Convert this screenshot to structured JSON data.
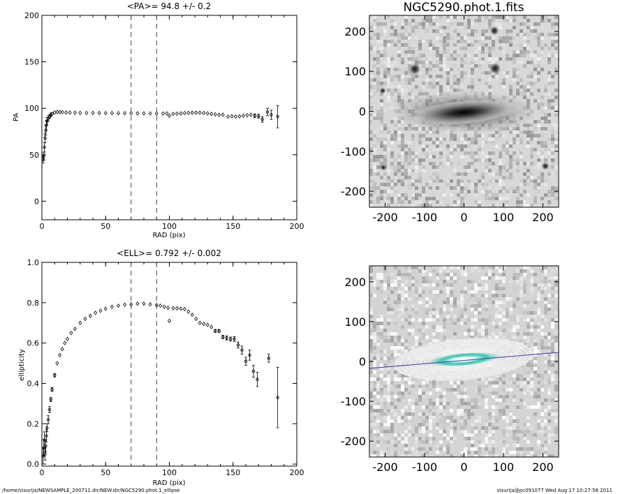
{
  "footer": {
    "path": "/home/visurija/NEWSAMPLE_200711.dir/NEW.dir/NGC5290.phot.1_ellipse",
    "stamp": "visurija@pc091077  Wed Aug 17 10:27:58 2011"
  },
  "chart_data": [
    {
      "type": "scatter",
      "title": "<PA>=  94.8 +/-   0.2",
      "xlabel": "RAD (pix)",
      "ylabel": "PA",
      "xlim": [
        0,
        200
      ],
      "ylim": [
        -20,
        200
      ],
      "xticks": [
        0,
        50,
        100,
        150,
        200
      ],
      "yticks": [
        0,
        50,
        100,
        150,
        200
      ],
      "vlines": [
        70,
        90
      ],
      "vline_style": "dashed",
      "marker": "diamond-open",
      "points": [
        {
          "x": 1,
          "y": 45,
          "e": 4
        },
        {
          "x": 1.5,
          "y": 48,
          "e": 4
        },
        {
          "x": 2,
          "y": 58,
          "e": 5
        },
        {
          "x": 2.5,
          "y": 68,
          "e": 5
        },
        {
          "x": 3,
          "y": 76,
          "e": 5
        },
        {
          "x": 3.5,
          "y": 82,
          "e": 5
        },
        {
          "x": 4,
          "y": 86,
          "e": 4
        },
        {
          "x": 5,
          "y": 89,
          "e": 3
        },
        {
          "x": 6,
          "y": 91,
          "e": 2
        },
        {
          "x": 7,
          "y": 93,
          "e": 2
        },
        {
          "x": 8,
          "y": 94,
          "e": 1
        },
        {
          "x": 10,
          "y": 95.5,
          "e": 1
        },
        {
          "x": 12,
          "y": 96,
          "e": 1
        },
        {
          "x": 14,
          "y": 96,
          "e": 0.5
        },
        {
          "x": 16,
          "y": 95.8,
          "e": 0.5
        },
        {
          "x": 19,
          "y": 95.5,
          "e": 0.5
        },
        {
          "x": 22,
          "y": 95.3,
          "e": 0.5
        },
        {
          "x": 26,
          "y": 95.2,
          "e": 0.5
        },
        {
          "x": 30,
          "y": 95.1,
          "e": 0.5
        },
        {
          "x": 35,
          "y": 95,
          "e": 0.5
        },
        {
          "x": 40,
          "y": 95,
          "e": 0.5
        },
        {
          "x": 45,
          "y": 94.9,
          "e": 0.5
        },
        {
          "x": 50,
          "y": 94.8,
          "e": 0.5
        },
        {
          "x": 55,
          "y": 94.8,
          "e": 0.5
        },
        {
          "x": 60,
          "y": 94.7,
          "e": 0.5
        },
        {
          "x": 65,
          "y": 94.7,
          "e": 0.5
        },
        {
          "x": 70,
          "y": 94.6,
          "e": 0.5
        },
        {
          "x": 75,
          "y": 94.6,
          "e": 0.5
        },
        {
          "x": 80,
          "y": 94.5,
          "e": 0.5
        },
        {
          "x": 85,
          "y": 94.4,
          "e": 0.5
        },
        {
          "x": 90,
          "y": 94.3,
          "e": 0.5
        },
        {
          "x": 95,
          "y": 94.3,
          "e": 0.5
        },
        {
          "x": 98,
          "y": 94.5,
          "e": 0.5
        },
        {
          "x": 100,
          "y": 92,
          "e": 0.7
        },
        {
          "x": 103,
          "y": 94,
          "e": 0.5
        },
        {
          "x": 106,
          "y": 94.2,
          "e": 0.5
        },
        {
          "x": 109,
          "y": 94.5,
          "e": 0.5
        },
        {
          "x": 112,
          "y": 94.8,
          "e": 0.5
        },
        {
          "x": 115,
          "y": 95,
          "e": 0.5
        },
        {
          "x": 118,
          "y": 95.2,
          "e": 0.5
        },
        {
          "x": 121,
          "y": 95.3,
          "e": 0.5
        },
        {
          "x": 124,
          "y": 95.2,
          "e": 0.5
        },
        {
          "x": 127,
          "y": 95,
          "e": 0.5
        },
        {
          "x": 130,
          "y": 94.5,
          "e": 0.5
        },
        {
          "x": 133,
          "y": 94,
          "e": 0.5
        },
        {
          "x": 136,
          "y": 93.5,
          "e": 0.5
        },
        {
          "x": 139,
          "y": 93,
          "e": 0.5
        },
        {
          "x": 142,
          "y": 93.2,
          "e": 0.5
        },
        {
          "x": 146,
          "y": 91,
          "e": 1
        },
        {
          "x": 149,
          "y": 91.5,
          "e": 1
        },
        {
          "x": 152,
          "y": 91,
          "e": 1
        },
        {
          "x": 155,
          "y": 91.3,
          "e": 1
        },
        {
          "x": 158,
          "y": 92,
          "e": 1
        },
        {
          "x": 161,
          "y": 92.5,
          "e": 1.5
        },
        {
          "x": 164,
          "y": 93,
          "e": 1.5
        },
        {
          "x": 167,
          "y": 92,
          "e": 2
        },
        {
          "x": 170,
          "y": 91.5,
          "e": 2
        },
        {
          "x": 173,
          "y": 88,
          "e": 3
        },
        {
          "x": 177,
          "y": 96,
          "e": 4
        },
        {
          "x": 180,
          "y": 93,
          "e": 5
        },
        {
          "x": 185,
          "y": 91,
          "e": 12
        }
      ]
    },
    {
      "type": "image",
      "title": "NGC5290.phot.1.fits",
      "xlim": [
        -240,
        240
      ],
      "ylim": [
        -240,
        240
      ],
      "xticks": [
        -200,
        -100,
        0,
        100,
        200
      ],
      "yticks": [
        -200,
        -100,
        0,
        100,
        200
      ]
    },
    {
      "type": "scatter",
      "title": "<ELL>= 0.792 +/-  0.002",
      "xlabel": "RAD (pix)",
      "ylabel": "ellipticity",
      "xlim": [
        0,
        200
      ],
      "ylim": [
        -0.01,
        1.0
      ],
      "xticks": [
        0,
        50,
        100,
        150,
        200
      ],
      "yticks": [
        0.0,
        0.2,
        0.4,
        0.6,
        0.8,
        1.0
      ],
      "ytick_labels": [
        "0.0",
        "0.2",
        "0.4",
        "0.6",
        "0.8",
        "1.0"
      ],
      "vlines": [
        70,
        90
      ],
      "vline_style": "dashed",
      "marker": "diamond-open",
      "points": [
        {
          "x": 1,
          "y": 0.04,
          "e": 0.04
        },
        {
          "x": 1.5,
          "y": 0.08,
          "e": 0.04
        },
        {
          "x": 2,
          "y": 0.12,
          "e": 0.04
        },
        {
          "x": 2.5,
          "y": 0.05,
          "e": 0.03
        },
        {
          "x": 3,
          "y": 0.09,
          "e": 0.03
        },
        {
          "x": 3.5,
          "y": 0.14,
          "e": 0.03
        },
        {
          "x": 4,
          "y": 0.18,
          "e": 0.02
        },
        {
          "x": 5,
          "y": 0.22,
          "e": 0.02
        },
        {
          "x": 6,
          "y": 0.27,
          "e": 0.015
        },
        {
          "x": 7,
          "y": 0.32,
          "e": 0.01
        },
        {
          "x": 8,
          "y": 0.37,
          "e": 0.01
        },
        {
          "x": 10,
          "y": 0.44,
          "e": 0.008
        },
        {
          "x": 12,
          "y": 0.5,
          "e": 0.006
        },
        {
          "x": 14,
          "y": 0.54,
          "e": 0.005
        },
        {
          "x": 16,
          "y": 0.57,
          "e": 0.005
        },
        {
          "x": 18,
          "y": 0.6,
          "e": 0.005
        },
        {
          "x": 20,
          "y": 0.62,
          "e": 0.004
        },
        {
          "x": 23,
          "y": 0.65,
          "e": 0.004
        },
        {
          "x": 26,
          "y": 0.67,
          "e": 0.004
        },
        {
          "x": 30,
          "y": 0.7,
          "e": 0.003
        },
        {
          "x": 34,
          "y": 0.72,
          "e": 0.003
        },
        {
          "x": 38,
          "y": 0.735,
          "e": 0.003
        },
        {
          "x": 42,
          "y": 0.75,
          "e": 0.003
        },
        {
          "x": 46,
          "y": 0.76,
          "e": 0.003
        },
        {
          "x": 50,
          "y": 0.77,
          "e": 0.003
        },
        {
          "x": 55,
          "y": 0.78,
          "e": 0.003
        },
        {
          "x": 60,
          "y": 0.785,
          "e": 0.003
        },
        {
          "x": 65,
          "y": 0.79,
          "e": 0.003
        },
        {
          "x": 70,
          "y": 0.792,
          "e": 0.003
        },
        {
          "x": 75,
          "y": 0.795,
          "e": 0.003
        },
        {
          "x": 80,
          "y": 0.795,
          "e": 0.003
        },
        {
          "x": 85,
          "y": 0.792,
          "e": 0.003
        },
        {
          "x": 90,
          "y": 0.788,
          "e": 0.003
        },
        {
          "x": 93,
          "y": 0.785,
          "e": 0.003
        },
        {
          "x": 96,
          "y": 0.78,
          "e": 0.003
        },
        {
          "x": 99,
          "y": 0.775,
          "e": 0.004
        },
        {
          "x": 100,
          "y": 0.71,
          "e": 0.005
        },
        {
          "x": 103,
          "y": 0.772,
          "e": 0.004
        },
        {
          "x": 106,
          "y": 0.772,
          "e": 0.004
        },
        {
          "x": 109,
          "y": 0.77,
          "e": 0.004
        },
        {
          "x": 112,
          "y": 0.768,
          "e": 0.004
        },
        {
          "x": 115,
          "y": 0.755,
          "e": 0.004
        },
        {
          "x": 118,
          "y": 0.74,
          "e": 0.004
        },
        {
          "x": 121,
          "y": 0.72,
          "e": 0.005
        },
        {
          "x": 124,
          "y": 0.7,
          "e": 0.005
        },
        {
          "x": 127,
          "y": 0.695,
          "e": 0.005
        },
        {
          "x": 130,
          "y": 0.69,
          "e": 0.006
        },
        {
          "x": 133,
          "y": 0.68,
          "e": 0.006
        },
        {
          "x": 136,
          "y": 0.66,
          "e": 0.007
        },
        {
          "x": 139,
          "y": 0.66,
          "e": 0.007
        },
        {
          "x": 142,
          "y": 0.63,
          "e": 0.008
        },
        {
          "x": 145,
          "y": 0.625,
          "e": 0.01
        },
        {
          "x": 148,
          "y": 0.62,
          "e": 0.01
        },
        {
          "x": 151,
          "y": 0.62,
          "e": 0.012
        },
        {
          "x": 154,
          "y": 0.59,
          "e": 0.015
        },
        {
          "x": 157,
          "y": 0.565,
          "e": 0.02
        },
        {
          "x": 160,
          "y": 0.51,
          "e": 0.02
        },
        {
          "x": 163,
          "y": 0.54,
          "e": 0.025
        },
        {
          "x": 166,
          "y": 0.46,
          "e": 0.03
        },
        {
          "x": 169,
          "y": 0.42,
          "e": 0.035
        },
        {
          "x": 178,
          "y": 0.525,
          "e": 0.02
        },
        {
          "x": 185,
          "y": 0.33,
          "e": 0.15
        }
      ]
    },
    {
      "type": "image",
      "title": "",
      "xlim": [
        -240,
        240
      ],
      "ylim": [
        -240,
        240
      ],
      "xticks": [
        -200,
        -100,
        0,
        100,
        200
      ],
      "yticks": [
        -200,
        -100,
        0,
        100,
        200
      ],
      "overlay": "isophote ellipses and major-axis line",
      "line_color": "#3a3aa8"
    }
  ]
}
